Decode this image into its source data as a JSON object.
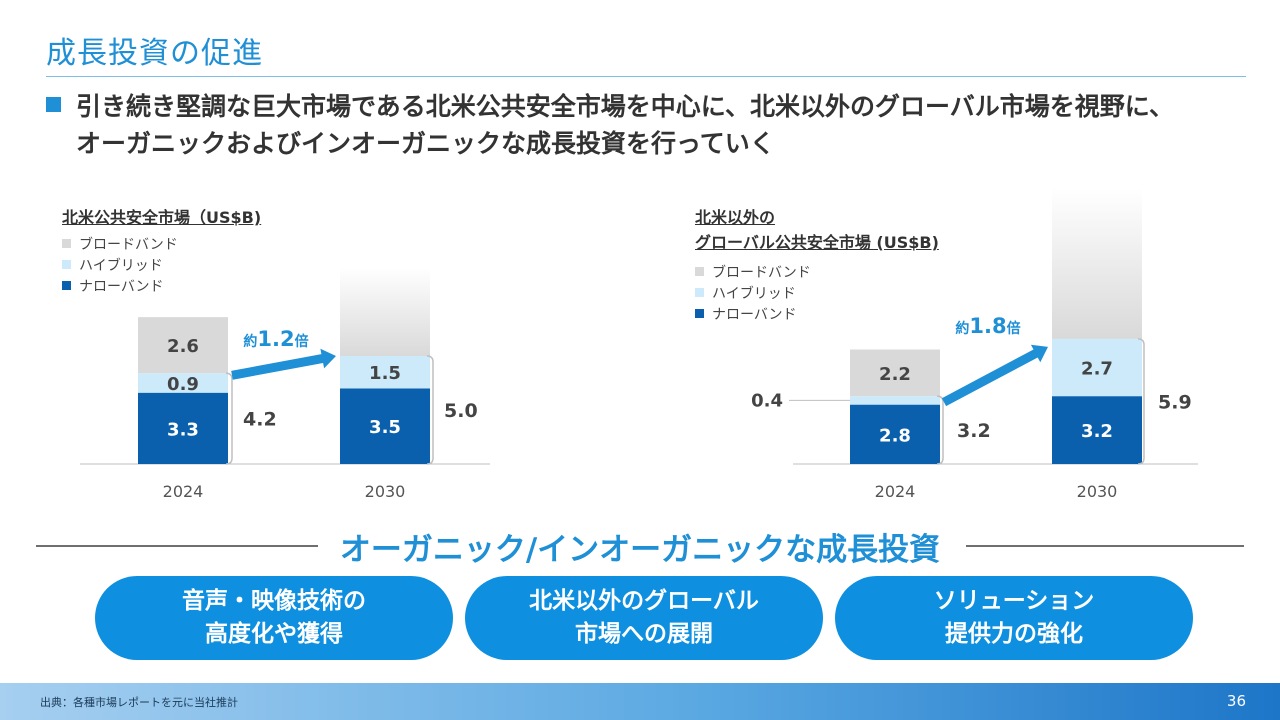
{
  "slide": {
    "title": "成長投資の促進",
    "bullet_line1": "引き続き堅調な巨大市場である北米公共安全市場を中心に、北米以外のグローバル市場を視野に、",
    "bullet_line2": "オーガニックおよびインオーガニックな成長投資を行っていく",
    "organic_title": "オーガニック/インオーガニックな成長投資",
    "pills": [
      {
        "line1": "音声・映像技術の",
        "line2": "高度化や獲得"
      },
      {
        "line1": "北米以外のグローバル",
        "line2": "市場への展開"
      },
      {
        "line1": "ソリューション",
        "line2": "提供力の強化"
      }
    ],
    "footer_source": "出典：各種市場レポートを元に当社推計",
    "page_number": "36"
  },
  "legend": {
    "broadband": "ブロードバンド",
    "hybrid": "ハイブリッド",
    "narrowband": "ナローバンド"
  },
  "colors": {
    "broadband": "#d9d9d9",
    "hybrid": "#cdeafa",
    "narrowband": "#0a60ad",
    "accent": "#1f8fd6"
  },
  "chart_data": [
    {
      "type": "bar",
      "stacked": true,
      "title": "北米公共安全市場（US$B)",
      "categories": [
        "2024",
        "2030"
      ],
      "series": [
        {
          "name": "ナローバンド",
          "values": [
            3.3,
            3.5
          ]
        },
        {
          "name": "ハイブリッド",
          "values": [
            0.9,
            1.5
          ]
        },
        {
          "name": "ブロードバンド",
          "values": [
            2.6,
            null
          ]
        }
      ],
      "bracket_totals": [
        "4.2",
        "5.0"
      ],
      "growth_label_prefix": "約",
      "growth_label_value": "1.2倍"
    },
    {
      "type": "bar",
      "stacked": true,
      "title_line1": "北米以外の",
      "title_line2": "グローバル公共安全市場 (US$B)",
      "categories": [
        "2024",
        "2030"
      ],
      "series": [
        {
          "name": "ナローバンド",
          "values": [
            2.8,
            3.2
          ]
        },
        {
          "name": "ハイブリッド",
          "values": [
            0.4,
            2.7
          ]
        },
        {
          "name": "ブロードバンド",
          "values": [
            2.2,
            null
          ]
        }
      ],
      "bracket_totals": [
        "3.2",
        "5.9"
      ],
      "growth_label_prefix": "約",
      "growth_label_value": "1.8倍"
    }
  ]
}
